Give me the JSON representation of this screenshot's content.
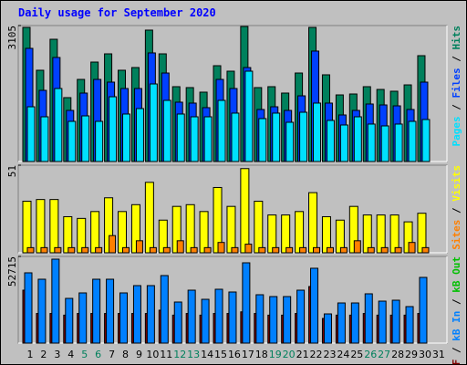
{
  "chart_data": [
    {
      "type": "bar",
      "title": "Daily usage for September 2020",
      "series": [
        {
          "name": "Hits",
          "color": "#00805c",
          "values": [
            3063,
            2084,
            2792,
            1459,
            1875,
            2271,
            2459,
            2084,
            2146,
            3001,
            2459,
            1709,
            1688,
            1584,
            2188,
            2063,
            3084,
            1688,
            1709,
            1563,
            2021,
            3063,
            1980,
            1521,
            1542,
            1709,
            1646,
            1605,
            1750,
            2417,
            null
          ]
        },
        {
          "name": "Files",
          "color": "#0040ff",
          "values": [
            2584,
            1625,
            2376,
            1167,
            1563,
            1875,
            1813,
            1667,
            1667,
            2480,
            2021,
            1355,
            1334,
            1230,
            1875,
            1667,
            2146,
            1188,
            1250,
            1167,
            1500,
            2522,
            1334,
            1063,
            1167,
            1313,
            1292,
            1271,
            1188,
            1813,
            null
          ]
        },
        {
          "name": "Pages",
          "color": "#00e0ff",
          "values": [
            1250,
            1021,
            1667,
            917,
            1042,
            917,
            1479,
            1084,
            1209,
            1771,
            1396,
            1084,
            1021,
            1021,
            1396,
            1105,
            2063,
            980,
            1105,
            896,
            1125,
            1334,
            938,
            834,
            1021,
            855,
            813,
            855,
            917,
            959,
            null
          ]
        }
      ],
      "legend_reversed": true,
      "legend_separator": " / ",
      "ylim": [
        0,
        3105
      ],
      "yticks": [
        3105
      ]
    },
    {
      "type": "bar",
      "series": [
        {
          "name": "Visits",
          "color": "#ffff00",
          "values": [
            30,
            31,
            31,
            21,
            20,
            24,
            32,
            24,
            28,
            41,
            19,
            27,
            28,
            24,
            38,
            27,
            49,
            30,
            22,
            22,
            24,
            35,
            21,
            19,
            27,
            22,
            22,
            22,
            18,
            23,
            null
          ]
        },
        {
          "name": "Sites",
          "color": "#ff8000",
          "values": [
            3,
            3,
            3,
            3,
            3,
            3,
            10,
            3,
            7,
            3,
            3,
            7,
            3,
            3,
            6,
            3,
            5,
            3,
            3,
            3,
            3,
            3,
            3,
            3,
            7,
            3,
            3,
            3,
            6,
            3,
            null
          ]
        }
      ],
      "legend_reversed": true,
      "legend_separator": " / ",
      "ylim": [
        0,
        51
      ],
      "yticks": [
        51
      ]
    },
    {
      "type": "bar",
      "categories": [
        "1",
        "2",
        "3",
        "4",
        "5",
        "6",
        "7",
        "8",
        "9",
        "10",
        "11",
        "12",
        "13",
        "14",
        "15",
        "16",
        "17",
        "18",
        "19",
        "20",
        "21",
        "22",
        "23",
        "24",
        "25",
        "26",
        "27",
        "28",
        "29",
        "30",
        "31"
      ],
      "category_colors": [
        "#000000",
        "#000000",
        "#000000",
        "#000000",
        "#00805c",
        "#00805c",
        "#000000",
        "#000000",
        "#000000",
        "#000000",
        "#000000",
        "#00805c",
        "#00805c",
        "#000000",
        "#000000",
        "#000000",
        "#000000",
        "#000000",
        "#00805c",
        "#00805c",
        "#000000",
        "#000000",
        "#000000",
        "#000000",
        "#000000",
        "#00805c",
        "#00805c",
        "#000000",
        "#000000",
        "#000000",
        "#000000"
      ],
      "series": [
        {
          "name": "kB F",
          "color": "#800000",
          "values": [
            32180,
            18000,
            18000,
            17000,
            18000,
            18000,
            18000,
            18000,
            18000,
            18000,
            20000,
            17000,
            18000,
            17000,
            18000,
            18000,
            19000,
            18000,
            17000,
            17000,
            18000,
            34400,
            15000,
            17000,
            17000,
            18000,
            17000,
            17000,
            17000,
            18000,
            null
          ]
        },
        {
          "name": "kB In",
          "color": "#0080ff",
          "values": [
            42735,
            38840,
            51050,
            27190,
            30520,
            38840,
            38840,
            30520,
            34960,
            34960,
            41070,
            24970,
            32180,
            26630,
            32740,
            31070,
            48830,
            29410,
            28300,
            28300,
            32180,
            45510,
            17750,
            24410,
            24410,
            29970,
            25520,
            26080,
            22200,
            39950,
            null
          ]
        },
        {
          "name": "kB Out",
          "color": "#00c000",
          "values": [
            0,
            0,
            0,
            0,
            0,
            0,
            0,
            0,
            0,
            0,
            0,
            0,
            0,
            0,
            0,
            0,
            0,
            0,
            0,
            0,
            0,
            0,
            0,
            0,
            0,
            0,
            0,
            0,
            0,
            0,
            null
          ]
        }
      ],
      "legend_reversed": false,
      "legend_separator": " / ",
      "ylim": [
        0,
        52715
      ],
      "yticks": [
        52715
      ]
    }
  ]
}
